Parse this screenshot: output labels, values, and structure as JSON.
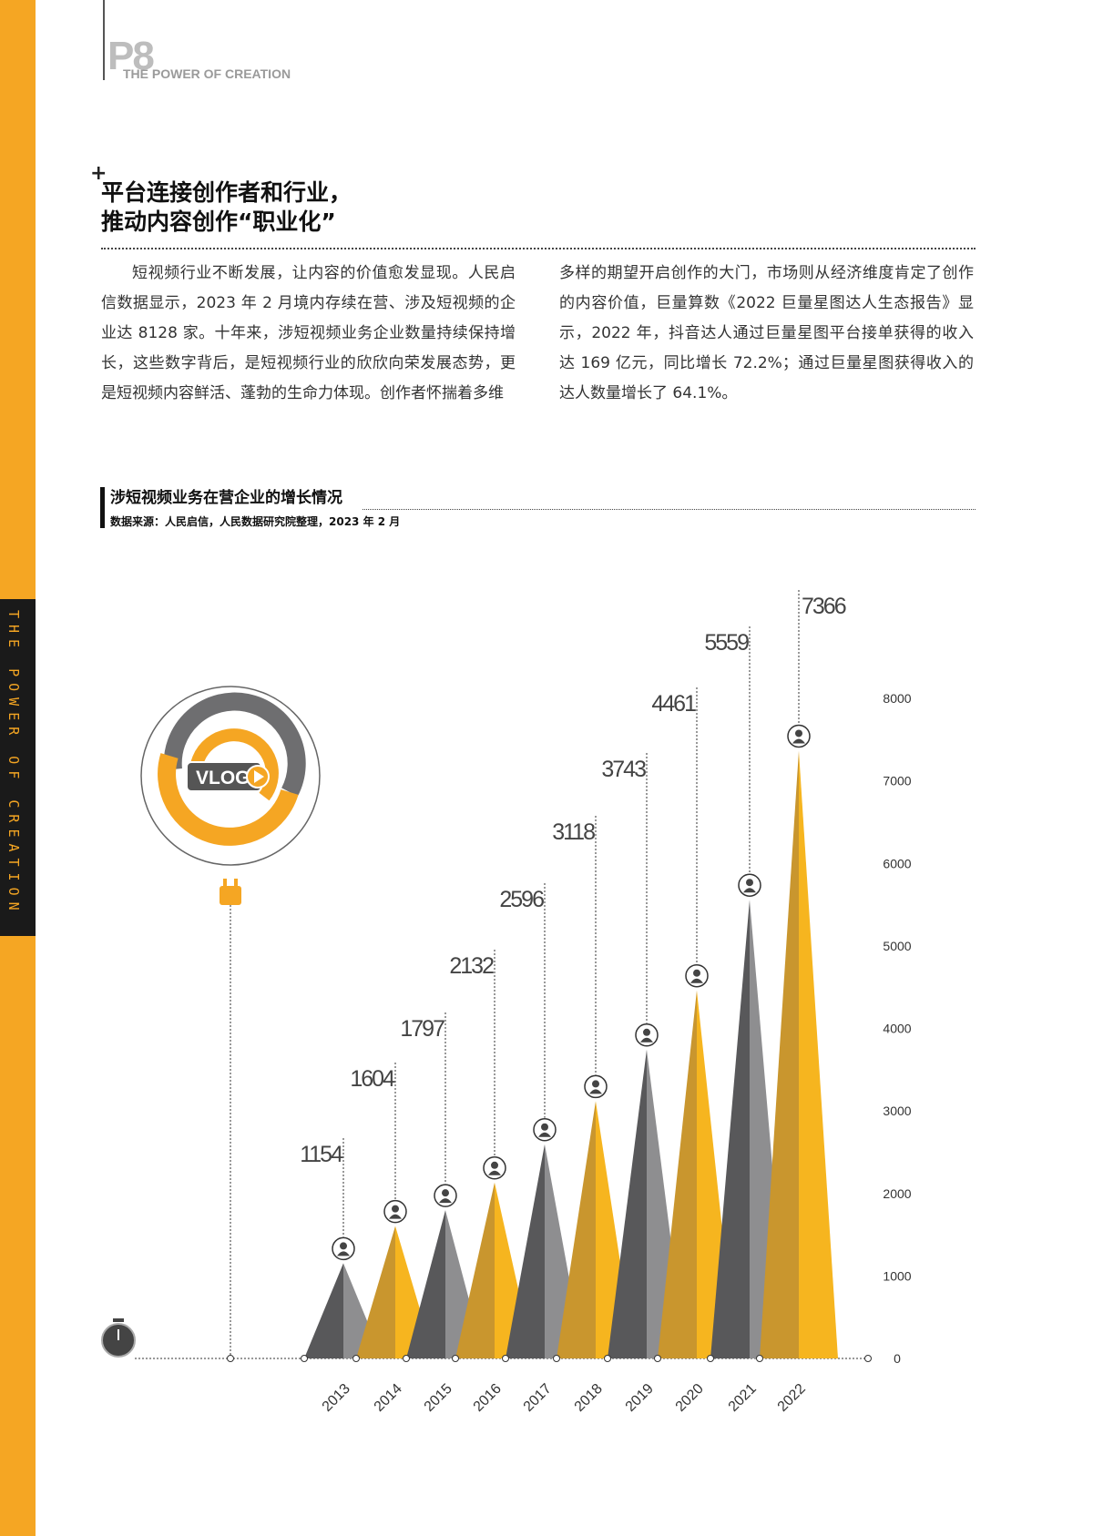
{
  "header": {
    "page": "P8",
    "tagline": "THE POWER OF CREATION"
  },
  "side_label": "THE POWER OF CREATION",
  "article": {
    "title_line1": "平台连接创作者和行业，",
    "title_line2": "推动内容创作“职业化”",
    "col_left": "短视频行业不断发展，让内容的价值愈发显现。人民启信数据显示，2023 年 2 月境内存续在营、涉及短视频的企业达 8128 家。十年来，涉短视频业务企业数量持续保持增长，这些数字背后，是短视频行业的欣欣向荣发展态势，更是短视频内容鲜活、蓬勃的生命力体现。创作者怀揣着多维",
    "col_right": "多样的期望开启创作的大门，市场则从经济维度肯定了创作的内容价值，巨量算数《2022 巨量星图达人生态报告》显示，2022 年，抖音达人通过巨量星图平台接单获得的收入达 169 亿元，同比增长 72.2%；通过巨量星图获得收入的达人数量增长了 64.1%。"
  },
  "vlog_badge": "VLOG",
  "chart_data": {
    "type": "bar",
    "title": "涉短视频业务在营企业的增长情况",
    "source": "数据来源：人民启信，人民数据研究院整理，2023 年 2 月",
    "categories": [
      "2013",
      "2014",
      "2015",
      "2016",
      "2017",
      "2018",
      "2019",
      "2020",
      "2021",
      "2022"
    ],
    "values": [
      1154,
      1604,
      1797,
      2132,
      2596,
      3118,
      3743,
      4461,
      5559,
      7366
    ],
    "data_labels": [
      "1154",
      "1604",
      "1797",
      "2132",
      "2596",
      "3118",
      "3743",
      "4461",
      "5559",
      "7366"
    ],
    "yticks": [
      "0",
      "1000",
      "2000",
      "3000",
      "4000",
      "5000",
      "6000",
      "7000",
      "8000"
    ],
    "ylim": [
      0,
      8000
    ],
    "colors": {
      "gray_dark": "#58585a",
      "gray_light": "#8e8e90",
      "yellow_dark": "#c9962e",
      "yellow_light": "#f6b51f"
    }
  }
}
